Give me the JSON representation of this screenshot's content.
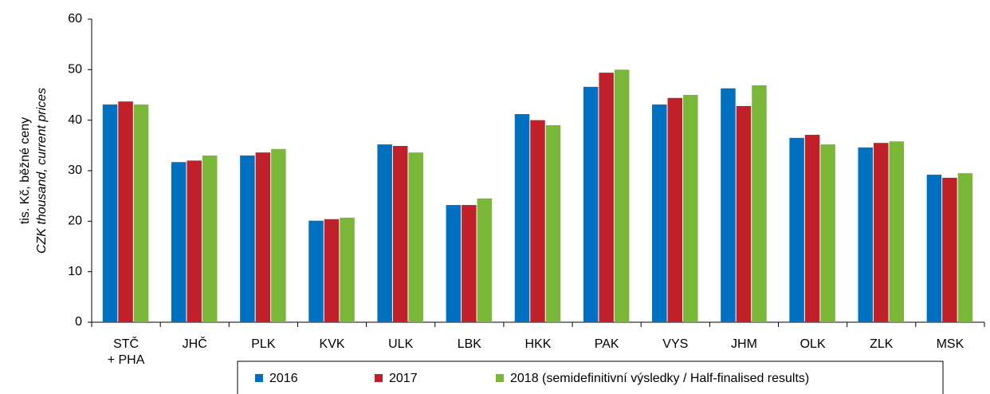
{
  "chart_data": {
    "type": "bar",
    "y_label": [
      "tis. Kč, běžné ceny",
      "CZK thousand, current prices"
    ],
    "categories": [
      [
        "STČ",
        "+ PHA"
      ],
      "JHČ",
      "PLK",
      "KVK",
      "ULK",
      "LBK",
      "HKK",
      "PAK",
      "VYS",
      "JHM",
      "OLK",
      "ZLK",
      "MSK"
    ],
    "series": [
      {
        "name": "2016",
        "color": "#0070c0",
        "values": [
          43.1,
          31.7,
          33.0,
          20.1,
          35.2,
          23.2,
          41.2,
          46.6,
          43.1,
          46.3,
          36.5,
          34.6,
          29.2
        ]
      },
      {
        "name": "2017",
        "color": "#c0202a",
        "values": [
          43.7,
          32.0,
          33.6,
          20.4,
          34.9,
          23.2,
          40.0,
          49.4,
          44.4,
          42.8,
          37.1,
          35.5,
          28.6
        ]
      },
      {
        "name": "2018 (semidefinitivní výsledky / Half-finalised results)",
        "color": "#7ab637",
        "values": [
          43.1,
          33.0,
          34.3,
          20.7,
          33.6,
          24.5,
          39.0,
          50.0,
          45.0,
          46.9,
          35.2,
          35.8,
          29.5
        ]
      }
    ],
    "ylim": [
      0,
      60
    ],
    "yticks": [
      0,
      10,
      20,
      30,
      40,
      50,
      60
    ],
    "grid": false,
    "legend": "bottom"
  }
}
